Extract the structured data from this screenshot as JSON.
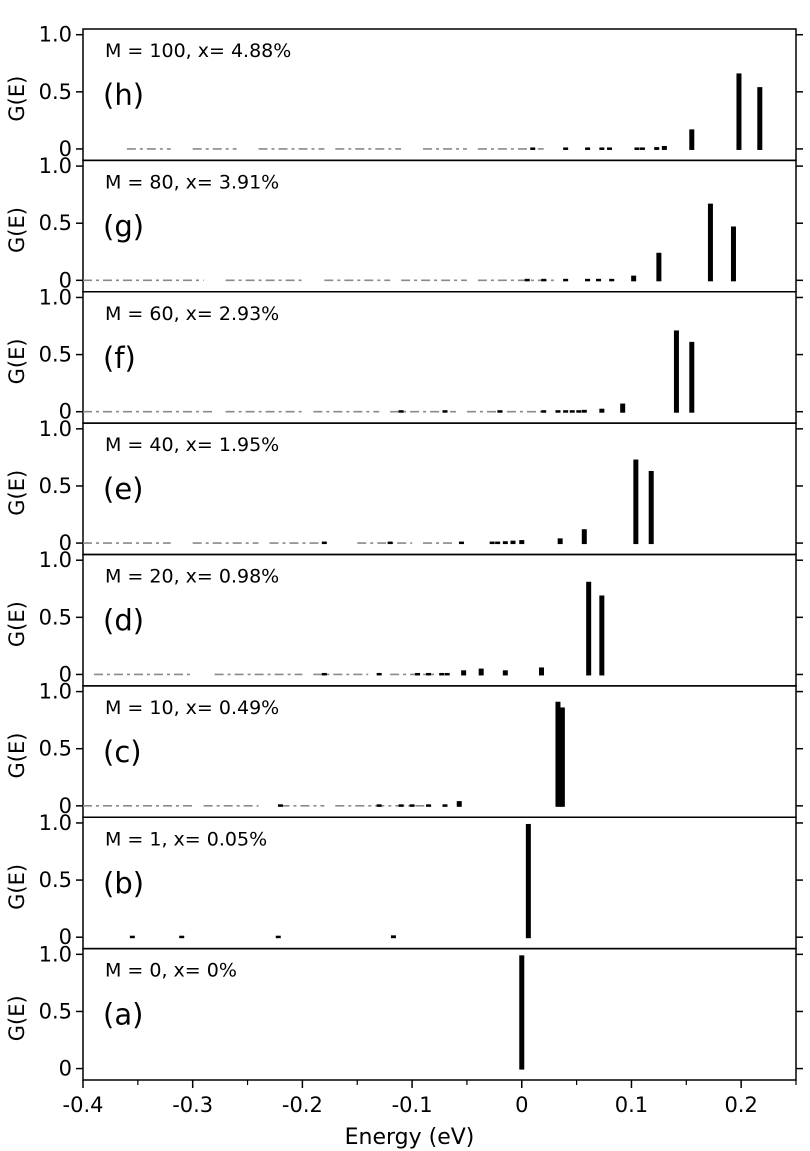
{
  "chart_data": {
    "type": "bar",
    "xlabel": "Energy (eV)",
    "ylabel": "G(E)",
    "xlim": [
      -0.4,
      0.25
    ],
    "ylim": [
      -0.1,
      1.05
    ],
    "x_ticks": [
      -0.4,
      -0.3,
      -0.2,
      -0.1,
      0,
      0.1,
      0.2
    ],
    "x_tick_labels": [
      "-0.4",
      "-0.3",
      "-0.2",
      "-0.1",
      "0",
      "0.1",
      "0.2"
    ],
    "y_ticks": [
      0,
      0.5,
      1.0
    ],
    "y_tick_labels": [
      "0",
      "0.5",
      "1.0"
    ],
    "grid": false,
    "panels": [
      {
        "label": "(h)",
        "annotation": "M = 100, x= 4.88%",
        "peaks": [
          {
            "x": 0.217,
            "y": 0.55
          },
          {
            "x": 0.198,
            "y": 0.67
          },
          {
            "x": 0.155,
            "y": 0.18
          },
          {
            "x": 0.13,
            "y": 0.035
          },
          {
            "x": 0.123,
            "y": 0.025
          },
          {
            "x": 0.11,
            "y": 0.015
          },
          {
            "x": 0.105,
            "y": 0.012
          },
          {
            "x": 0.08,
            "y": 0.012
          },
          {
            "x": 0.073,
            "y": 0.01
          },
          {
            "x": 0.06,
            "y": 0.008
          },
          {
            "x": 0.04,
            "y": 0.006
          },
          {
            "x": 0.01,
            "y": 0.006
          }
        ],
        "baseline_segments": [
          [
            -0.36,
            -0.32
          ],
          [
            -0.3,
            -0.26
          ],
          [
            -0.24,
            -0.18
          ],
          [
            -0.17,
            -0.11
          ],
          [
            -0.09,
            -0.05
          ],
          [
            -0.04,
            0.02
          ]
        ]
      },
      {
        "label": "(g)",
        "annotation": "M = 80, x= 3.91%",
        "peaks": [
          {
            "x": 0.193,
            "y": 0.48
          },
          {
            "x": 0.172,
            "y": 0.68
          },
          {
            "x": 0.125,
            "y": 0.25
          },
          {
            "x": 0.102,
            "y": 0.05
          },
          {
            "x": 0.082,
            "y": 0.02
          },
          {
            "x": 0.07,
            "y": 0.015
          },
          {
            "x": 0.06,
            "y": 0.012
          },
          {
            "x": 0.04,
            "y": 0.008
          },
          {
            "x": 0.02,
            "y": 0.006
          },
          {
            "x": 0.005,
            "y": 0.006
          }
        ],
        "baseline_segments": [
          [
            -0.4,
            -0.29
          ],
          [
            -0.27,
            -0.2
          ],
          [
            -0.18,
            -0.12
          ],
          [
            -0.11,
            -0.05
          ],
          [
            -0.04,
            0.03
          ]
        ]
      },
      {
        "label": "(f)",
        "annotation": "M = 60, x= 2.93%",
        "peaks": [
          {
            "x": 0.155,
            "y": 0.62
          },
          {
            "x": 0.141,
            "y": 0.72
          },
          {
            "x": 0.092,
            "y": 0.08
          },
          {
            "x": 0.073,
            "y": 0.035
          },
          {
            "x": 0.057,
            "y": 0.025
          },
          {
            "x": 0.052,
            "y": 0.02
          },
          {
            "x": 0.046,
            "y": 0.015
          },
          {
            "x": 0.04,
            "y": 0.012
          },
          {
            "x": 0.033,
            "y": 0.01
          },
          {
            "x": 0.02,
            "y": 0.008
          },
          {
            "x": -0.02,
            "y": 0.006
          },
          {
            "x": -0.07,
            "y": 0.006
          },
          {
            "x": -0.11,
            "y": 0.005
          }
        ],
        "baseline_segments": [
          [
            -0.4,
            -0.28
          ],
          [
            -0.27,
            -0.2
          ],
          [
            -0.19,
            -0.13
          ],
          [
            -0.12,
            -0.06
          ],
          [
            -0.05,
            0.02
          ]
        ]
      },
      {
        "label": "(e)",
        "annotation": "M = 40, x= 1.95%",
        "peaks": [
          {
            "x": 0.118,
            "y": 0.64
          },
          {
            "x": 0.104,
            "y": 0.74
          },
          {
            "x": 0.057,
            "y": 0.13
          },
          {
            "x": 0.035,
            "y": 0.05
          },
          {
            "x": 0.0,
            "y": 0.035
          },
          {
            "x": -0.008,
            "y": 0.03
          },
          {
            "x": -0.015,
            "y": 0.025
          },
          {
            "x": -0.022,
            "y": 0.02
          },
          {
            "x": -0.027,
            "y": 0.015
          },
          {
            "x": -0.055,
            "y": 0.01
          },
          {
            "x": -0.12,
            "y": 0.006
          },
          {
            "x": -0.18,
            "y": 0.005
          }
        ],
        "baseline_segments": [
          [
            -0.4,
            -0.32
          ],
          [
            -0.3,
            -0.24
          ],
          [
            -0.23,
            -0.18
          ],
          [
            -0.15,
            -0.1
          ],
          [
            -0.09,
            -0.06
          ]
        ]
      },
      {
        "label": "(d)",
        "annotation": "M = 20, x= 0.98%",
        "peaks": [
          {
            "x": 0.073,
            "y": 0.7
          },
          {
            "x": 0.061,
            "y": 0.82
          },
          {
            "x": 0.018,
            "y": 0.07
          },
          {
            "x": -0.015,
            "y": 0.045
          },
          {
            "x": -0.037,
            "y": 0.06
          },
          {
            "x": -0.053,
            "y": 0.045
          },
          {
            "x": -0.068,
            "y": 0.02
          },
          {
            "x": -0.073,
            "y": 0.015
          },
          {
            "x": -0.085,
            "y": 0.01
          },
          {
            "x": -0.095,
            "y": 0.008
          },
          {
            "x": -0.13,
            "y": 0.006
          },
          {
            "x": -0.18,
            "y": 0.005
          }
        ],
        "baseline_segments": [
          [
            -0.39,
            -0.3
          ],
          [
            -0.28,
            -0.2
          ],
          [
            -0.19,
            -0.14
          ],
          [
            -0.12,
            -0.08
          ]
        ]
      },
      {
        "label": "(c)",
        "annotation": "M = 10, x= 0.49%",
        "peaks": [
          {
            "x": 0.037,
            "y": 0.87
          },
          {
            "x": 0.033,
            "y": 0.92
          },
          {
            "x": -0.057,
            "y": 0.05
          },
          {
            "x": -0.07,
            "y": 0.02
          },
          {
            "x": -0.085,
            "y": 0.01
          },
          {
            "x": -0.1,
            "y": 0.008
          },
          {
            "x": -0.11,
            "y": 0.008
          },
          {
            "x": -0.13,
            "y": 0.006
          },
          {
            "x": -0.22,
            "y": 0.006
          }
        ],
        "baseline_segments": [
          [
            -0.4,
            -0.3
          ],
          [
            -0.29,
            -0.24
          ],
          [
            -0.22,
            -0.18
          ],
          [
            -0.17,
            -0.08
          ]
        ]
      },
      {
        "label": "(b)",
        "annotation": "M = 1, x= 0.05%",
        "peaks": [
          {
            "x": 0.006,
            "y": 1.0
          },
          {
            "x": -0.117,
            "y": 0.025
          },
          {
            "x": -0.222,
            "y": 0.006
          },
          {
            "x": -0.31,
            "y": 0.006
          },
          {
            "x": -0.355,
            "y": 0.006
          }
        ],
        "baseline_segments": []
      },
      {
        "label": "(a)",
        "annotation": "M = 0, x= 0%",
        "peaks": [
          {
            "x": 0.0,
            "y": 1.0
          }
        ],
        "baseline_segments": []
      }
    ]
  }
}
